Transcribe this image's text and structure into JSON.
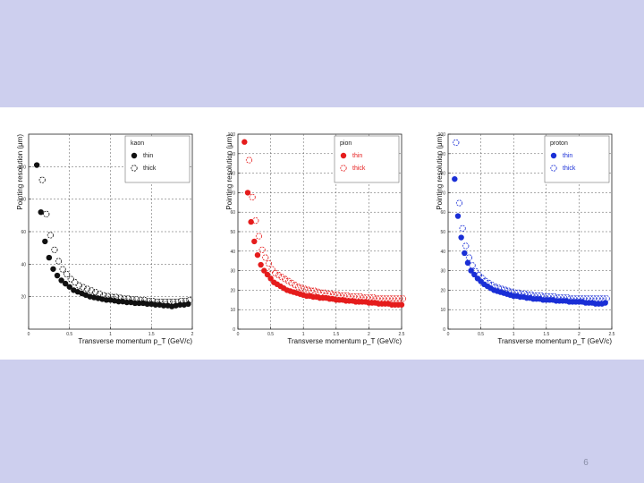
{
  "slide": {
    "number": "6"
  },
  "chart_data": [
    {
      "type": "scatter",
      "xlabel": "Transverse momentum p_T (GeV/c)",
      "ylabel": "Pointing resolution (μm)",
      "xlim": [
        0,
        2.0
      ],
      "ylim": [
        0,
        120
      ],
      "xticks": [
        "0",
        "0.5",
        "1",
        "1.5",
        "2",
        "2.5"
      ],
      "yticks": [
        "20",
        "40",
        "60",
        "80",
        "100"
      ],
      "grid": "dashed",
      "legend_position": "top-right",
      "legend_title": "kaon",
      "color": "#111111",
      "series": [
        {
          "name": "thin",
          "marker": "filled",
          "x": [
            0.1,
            0.15,
            0.2,
            0.25,
            0.3,
            0.35,
            0.4,
            0.45,
            0.5,
            0.55,
            0.6,
            0.65,
            0.7,
            0.75,
            0.8,
            0.85,
            0.9,
            0.95,
            1.0,
            1.05,
            1.1,
            1.15,
            1.2,
            1.25,
            1.3,
            1.35,
            1.4,
            1.45,
            1.5,
            1.55,
            1.6,
            1.65,
            1.7,
            1.75,
            1.8,
            1.85,
            1.9,
            1.95
          ],
          "y": [
            101,
            72,
            54,
            44,
            37,
            33,
            30,
            28,
            26,
            24,
            23,
            22,
            21,
            20,
            19.5,
            19,
            18.5,
            18,
            18,
            17.5,
            17,
            17,
            16.5,
            16.5,
            16,
            16,
            16,
            15.5,
            15.5,
            15,
            15,
            14.5,
            14.5,
            14,
            14.5,
            15,
            15,
            15.5
          ]
        },
        {
          "name": "thick",
          "marker": "open",
          "x": [
            0.15,
            0.2,
            0.25,
            0.3,
            0.35,
            0.4,
            0.45,
            0.5,
            0.55,
            0.6,
            0.65,
            0.7,
            0.75,
            0.8,
            0.85,
            0.9,
            0.95,
            1.0,
            1.05,
            1.1,
            1.15,
            1.2,
            1.25,
            1.3,
            1.35,
            1.4,
            1.45,
            1.5,
            1.55,
            1.6,
            1.65,
            1.7,
            1.75,
            1.8,
            1.85,
            1.9,
            1.95
          ],
          "y": [
            91,
            70,
            57,
            48,
            41,
            36,
            33,
            30,
            28,
            26,
            25,
            24,
            23,
            22,
            21,
            20,
            19.5,
            19,
            19,
            18.5,
            18,
            18,
            17.5,
            17.5,
            17,
            17,
            16.5,
            16.5,
            16,
            16,
            16,
            16,
            16,
            16,
            16.5,
            16.5,
            17
          ]
        }
      ]
    },
    {
      "type": "scatter",
      "xlabel": "Transverse momentum p_T (GeV/c)",
      "ylabel": "Pointing resolution (μm)",
      "xlim": [
        0,
        2.5
      ],
      "ylim": [
        0,
        100
      ],
      "xticks": [
        "0",
        "0.5",
        "1",
        "1.5",
        "2",
        "2.5"
      ],
      "yticks": [
        "0",
        "10",
        "20",
        "30",
        "40",
        "50",
        "60",
        "70",
        "80",
        "90",
        "100"
      ],
      "grid": "dashed",
      "legend_position": "top-right",
      "legend_title": "pion",
      "color": "#e51c1c",
      "series": [
        {
          "name": "thin",
          "marker": "filled",
          "x": [
            0.1,
            0.15,
            0.2,
            0.25,
            0.3,
            0.35,
            0.4,
            0.45,
            0.5,
            0.55,
            0.6,
            0.65,
            0.7,
            0.75,
            0.8,
            0.85,
            0.9,
            0.95,
            1.0,
            1.05,
            1.1,
            1.15,
            1.2,
            1.25,
            1.3,
            1.35,
            1.4,
            1.45,
            1.5,
            1.55,
            1.6,
            1.65,
            1.7,
            1.75,
            1.8,
            1.85,
            1.9,
            1.95,
            2.0,
            2.05,
            2.1,
            2.15,
            2.2,
            2.25,
            2.3,
            2.35,
            2.4,
            2.45,
            2.5
          ],
          "y": [
            96,
            70,
            55,
            45,
            38,
            33,
            30,
            28,
            26,
            24,
            23,
            22,
            21,
            20,
            19.5,
            19,
            18.5,
            18,
            17.5,
            17,
            17,
            16.5,
            16.5,
            16,
            16,
            16,
            15.5,
            15.5,
            15,
            15,
            15,
            14.5,
            14.5,
            14.5,
            14,
            14,
            14,
            14,
            13.5,
            13.5,
            13.5,
            13,
            13,
            13,
            13,
            12.5,
            12.5,
            12.5,
            12.5
          ]
        },
        {
          "name": "thick",
          "marker": "open",
          "x": [
            0.15,
            0.2,
            0.25,
            0.3,
            0.35,
            0.4,
            0.45,
            0.5,
            0.55,
            0.6,
            0.65,
            0.7,
            0.75,
            0.8,
            0.85,
            0.9,
            0.95,
            1.0,
            1.05,
            1.1,
            1.15,
            1.2,
            1.25,
            1.3,
            1.35,
            1.4,
            1.45,
            1.5,
            1.55,
            1.6,
            1.65,
            1.7,
            1.75,
            1.8,
            1.85,
            1.9,
            1.95,
            2.0,
            2.05,
            2.1,
            2.15,
            2.2,
            2.25,
            2.3,
            2.35,
            2.4,
            2.45,
            2.5
          ],
          "y": [
            86,
            67,
            55,
            47,
            40,
            36,
            33,
            30,
            28,
            27,
            26,
            25,
            24,
            23,
            22,
            21,
            20.5,
            20,
            19.5,
            19,
            19,
            18.5,
            18,
            18,
            17.5,
            17.5,
            17,
            17,
            16.5,
            16.5,
            16.5,
            16,
            16,
            16,
            16,
            15.5,
            15.5,
            15.5,
            15.5,
            15,
            15,
            15,
            15,
            15,
            15,
            15,
            15,
            15
          ]
        }
      ]
    },
    {
      "type": "scatter",
      "xlabel": "Transverse momentum p_T (GeV/c)",
      "ylabel": "Pointing resolution (μm)",
      "xlim": [
        0,
        2.5
      ],
      "ylim": [
        0,
        100
      ],
      "xticks": [
        "0",
        "0.5",
        "1",
        "1.5",
        "2",
        "2.5"
      ],
      "yticks": [
        "0",
        "10",
        "20",
        "30",
        "40",
        "50",
        "60",
        "70",
        "80",
        "90",
        "100"
      ],
      "grid": "dashed",
      "legend_position": "top-right",
      "legend_title": "proton",
      "color": "#1a2fd6",
      "series": [
        {
          "name": "thin",
          "marker": "filled",
          "x": [
            0.1,
            0.15,
            0.2,
            0.25,
            0.3,
            0.35,
            0.4,
            0.45,
            0.5,
            0.55,
            0.6,
            0.65,
            0.7,
            0.75,
            0.8,
            0.85,
            0.9,
            0.95,
            1.0,
            1.05,
            1.1,
            1.15,
            1.2,
            1.25,
            1.3,
            1.35,
            1.4,
            1.45,
            1.5,
            1.55,
            1.6,
            1.65,
            1.7,
            1.75,
            1.8,
            1.85,
            1.9,
            1.95,
            2.0,
            2.05,
            2.1,
            2.15,
            2.2,
            2.25,
            2.3,
            2.35,
            2.4
          ],
          "y": [
            77,
            58,
            47,
            39,
            34,
            30,
            28,
            26,
            24.5,
            23,
            22,
            21,
            20,
            19.5,
            19,
            18.5,
            18,
            17.5,
            17,
            17,
            16.5,
            16.5,
            16,
            16,
            15.5,
            15.5,
            15.5,
            15,
            15,
            15,
            15,
            14.5,
            14.5,
            14.5,
            14.5,
            14,
            14,
            14,
            14,
            14,
            13.5,
            13.5,
            13.5,
            13,
            13,
            13,
            13.5
          ]
        },
        {
          "name": "thick",
          "marker": "open",
          "x": [
            0.1,
            0.15,
            0.2,
            0.25,
            0.3,
            0.35,
            0.4,
            0.45,
            0.5,
            0.55,
            0.6,
            0.65,
            0.7,
            0.75,
            0.8,
            0.85,
            0.9,
            0.95,
            1.0,
            1.05,
            1.1,
            1.15,
            1.2,
            1.25,
            1.3,
            1.35,
            1.4,
            1.45,
            1.5,
            1.55,
            1.6,
            1.65,
            1.7,
            1.75,
            1.8,
            1.85,
            1.9,
            1.95,
            2.0,
            2.05,
            2.1,
            2.15,
            2.2,
            2.25,
            2.3,
            2.35,
            2.4
          ],
          "y": [
            95,
            64,
            51,
            42,
            36,
            32,
            29,
            27,
            25.5,
            24,
            23,
            22,
            21,
            20.5,
            20,
            19.5,
            19,
            18.5,
            18,
            18,
            17.5,
            17.5,
            17,
            17,
            16.5,
            16.5,
            16.5,
            16,
            16,
            16,
            16,
            15.5,
            15.5,
            15.5,
            15.5,
            15,
            15,
            15,
            15,
            15,
            15,
            15,
            15,
            15,
            15,
            15,
            15
          ]
        }
      ]
    }
  ]
}
